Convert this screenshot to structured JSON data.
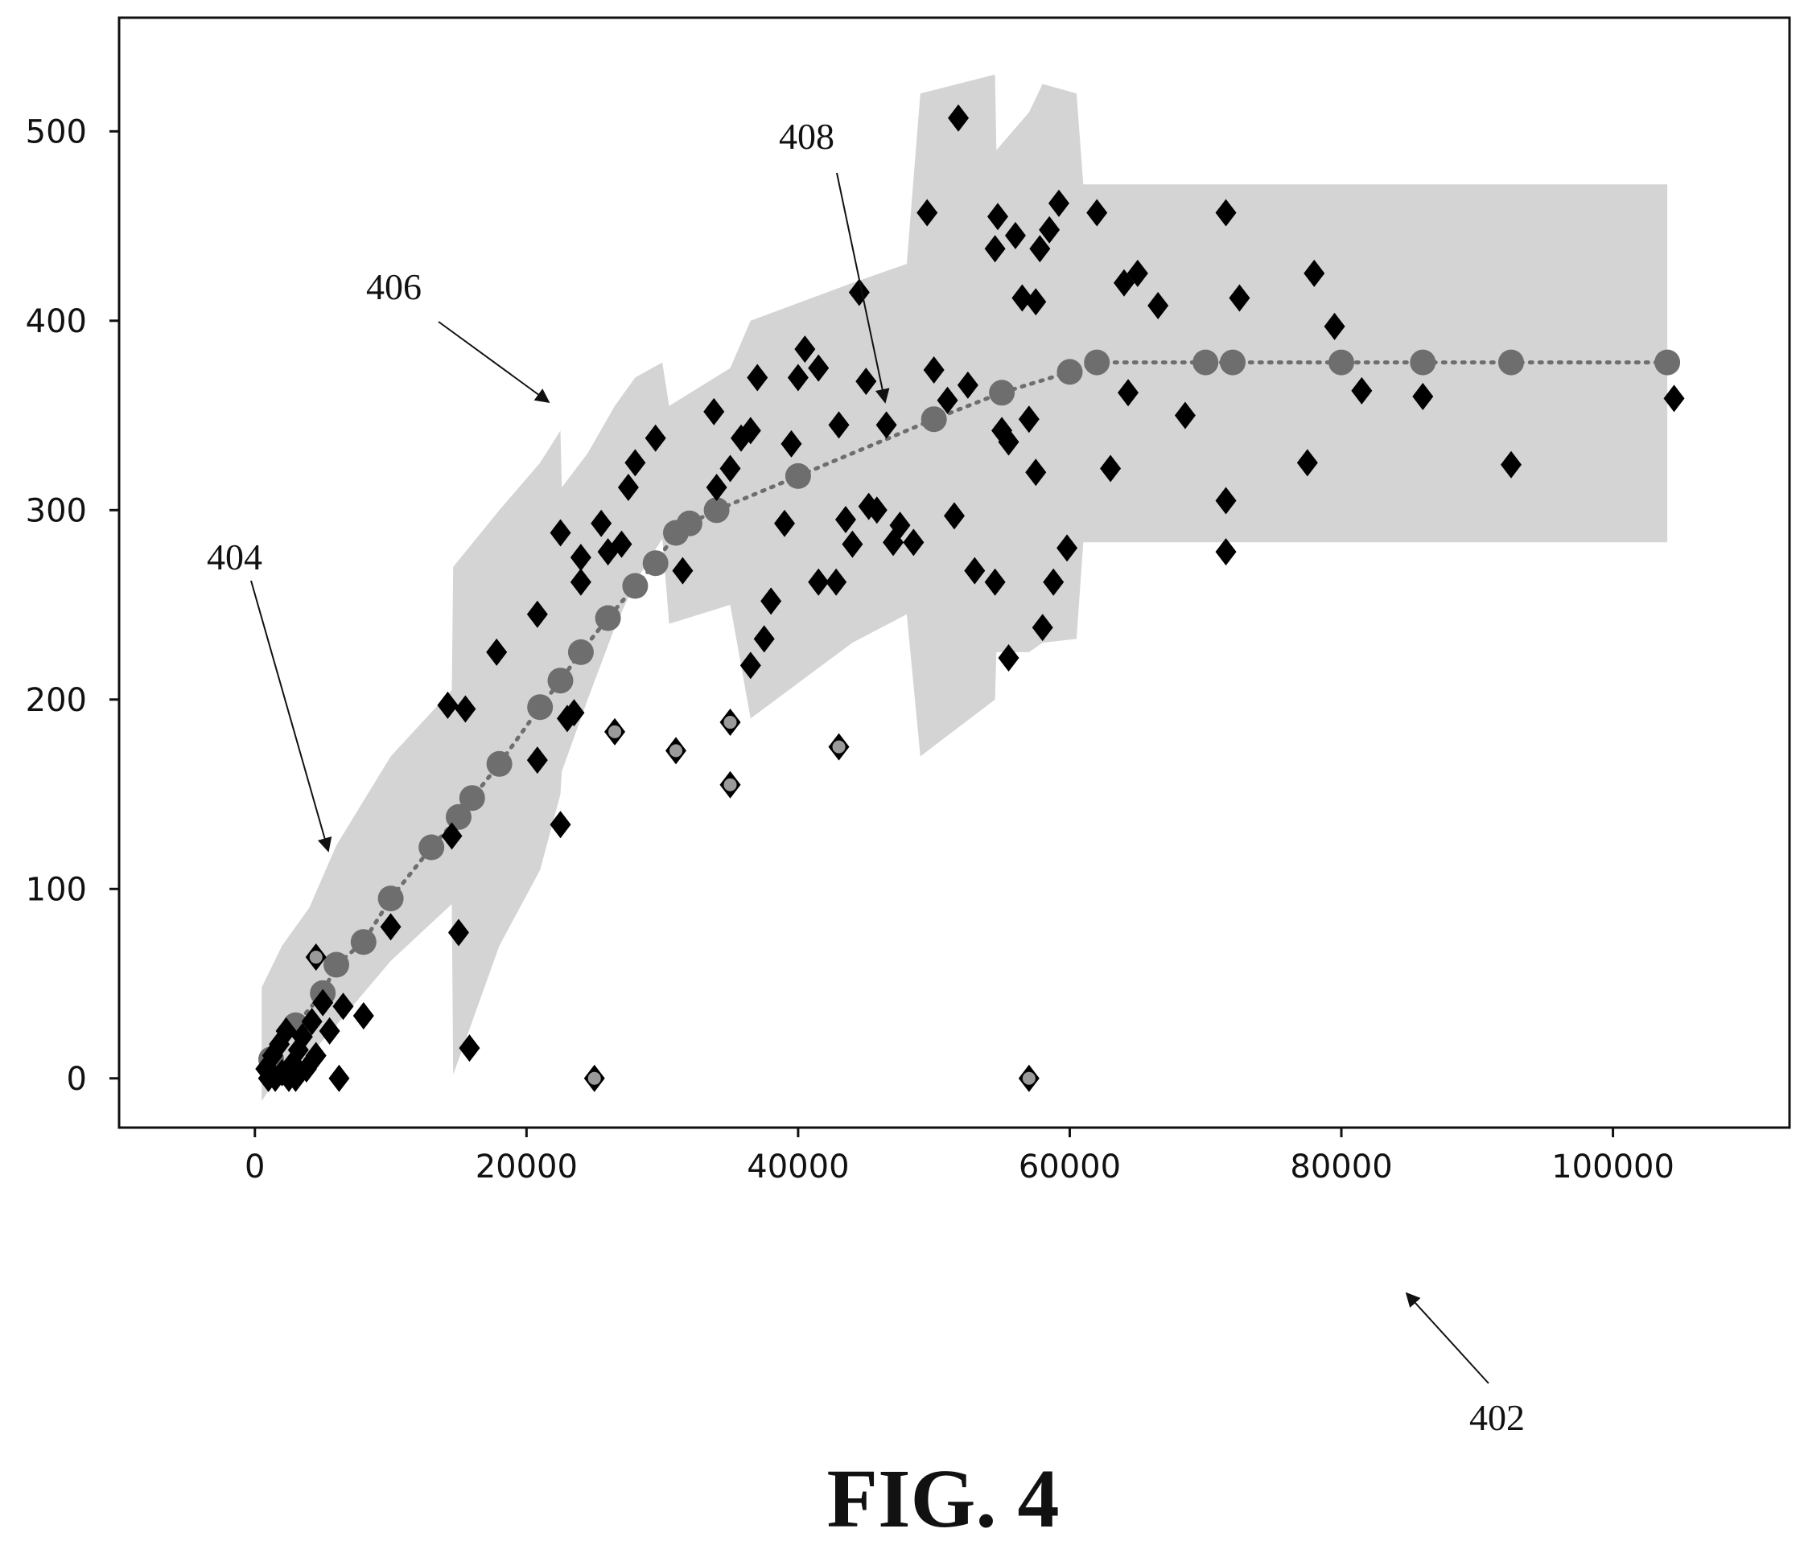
{
  "chart_data": {
    "type": "scatter",
    "title": "",
    "xlabel": "",
    "ylabel": "",
    "xlim": [
      -10000,
      113000
    ],
    "ylim": [
      -26,
      560
    ],
    "x_ticks": [
      "0",
      "20000",
      "40000",
      "60000",
      "80000",
      "100000"
    ],
    "y_ticks": [
      "0",
      "100",
      "200",
      "300",
      "400",
      "500"
    ],
    "x_tick_values": [
      0,
      20000,
      40000,
      60000,
      80000,
      100000
    ],
    "y_tick_values": [
      0,
      100,
      200,
      300,
      400,
      500
    ],
    "grid": false,
    "legend": "none",
    "colors": {
      "observed": "#000000",
      "outlier_fill": "#9a9a9a",
      "fit": "#6e6e6e",
      "band": "#d4d4d4"
    },
    "series": [
      {
        "kind": "band",
        "points": [
          [
            500,
            48,
            -12
          ],
          [
            2000,
            70,
            4
          ],
          [
            4000,
            90,
            12
          ],
          [
            6000,
            123,
            28
          ],
          [
            10000,
            170,
            62
          ],
          [
            14500,
            205,
            92
          ],
          [
            14600,
            270,
            2
          ],
          [
            18000,
            300,
            70
          ],
          [
            21000,
            325,
            110
          ],
          [
            22500,
            342,
            150
          ],
          [
            22600,
            312,
            162
          ],
          [
            24500,
            330,
            200
          ],
          [
            26500,
            355,
            238
          ],
          [
            28000,
            370,
            262
          ],
          [
            30000,
            378,
            285
          ],
          [
            30500,
            355,
            240
          ],
          [
            35000,
            375,
            250
          ],
          [
            36500,
            400,
            190
          ],
          [
            44000,
            420,
            230
          ],
          [
            48000,
            430,
            245
          ],
          [
            49000,
            520,
            170
          ],
          [
            54500,
            530,
            200
          ],
          [
            54600,
            490,
            225
          ],
          [
            57000,
            510,
            225
          ],
          [
            58000,
            525,
            230
          ],
          [
            60500,
            520,
            232
          ],
          [
            61000,
            472,
            283
          ],
          [
            104000,
            472,
            283
          ]
        ]
      },
      {
        "kind": "fit",
        "points": [
          [
            1200,
            10
          ],
          [
            3000,
            28
          ],
          [
            5000,
            45
          ],
          [
            6000,
            60
          ],
          [
            8000,
            72
          ],
          [
            10000,
            95
          ],
          [
            13000,
            122
          ],
          [
            15000,
            138
          ],
          [
            16000,
            148
          ],
          [
            18000,
            166
          ],
          [
            21000,
            196
          ],
          [
            22500,
            210
          ],
          [
            24000,
            225
          ],
          [
            26000,
            243
          ],
          [
            28000,
            260
          ],
          [
            29500,
            272
          ],
          [
            31000,
            288
          ],
          [
            32000,
            293
          ],
          [
            34000,
            300
          ],
          [
            40000,
            318
          ],
          [
            50000,
            348
          ],
          [
            55000,
            362
          ],
          [
            60000,
            373
          ],
          [
            62000,
            378
          ],
          [
            70000,
            378
          ],
          [
            72000,
            378
          ],
          [
            80000,
            378
          ],
          [
            86000,
            378
          ],
          [
            92500,
            378
          ],
          [
            104000,
            378
          ]
        ]
      },
      {
        "kind": "observed",
        "points": [
          [
            800,
            5
          ],
          [
            1000,
            0
          ],
          [
            1300,
            12
          ],
          [
            1500,
            0
          ],
          [
            1800,
            18
          ],
          [
            2000,
            3
          ],
          [
            2300,
            25
          ],
          [
            2500,
            0
          ],
          [
            2800,
            8
          ],
          [
            3000,
            0
          ],
          [
            3200,
            15
          ],
          [
            3500,
            22
          ],
          [
            3800,
            5
          ],
          [
            4200,
            30
          ],
          [
            4500,
            12
          ],
          [
            5000,
            40
          ],
          [
            5500,
            25
          ],
          [
            6200,
            0
          ],
          [
            6500,
            38
          ],
          [
            8000,
            33
          ],
          [
            10000,
            80
          ],
          [
            14200,
            197
          ],
          [
            14500,
            128
          ],
          [
            15000,
            77
          ],
          [
            15500,
            195
          ],
          [
            15800,
            16
          ],
          [
            17800,
            225
          ],
          [
            20800,
            245
          ],
          [
            20800,
            168
          ],
          [
            22500,
            288
          ],
          [
            22500,
            134
          ],
          [
            23000,
            190
          ],
          [
            23500,
            193
          ],
          [
            24000,
            275
          ],
          [
            24000,
            262
          ],
          [
            25500,
            293
          ],
          [
            26000,
            278
          ],
          [
            27000,
            282
          ],
          [
            27500,
            312
          ],
          [
            28000,
            325
          ],
          [
            29500,
            338
          ],
          [
            31500,
            268
          ],
          [
            33800,
            352
          ],
          [
            34000,
            312
          ],
          [
            35000,
            322
          ],
          [
            35800,
            338
          ],
          [
            36500,
            218
          ],
          [
            36500,
            342
          ],
          [
            37000,
            370
          ],
          [
            37500,
            232
          ],
          [
            38000,
            252
          ],
          [
            39000,
            293
          ],
          [
            39500,
            335
          ],
          [
            40000,
            370
          ],
          [
            40500,
            385
          ],
          [
            41500,
            375
          ],
          [
            41500,
            262
          ],
          [
            42800,
            262
          ],
          [
            43000,
            345
          ],
          [
            43500,
            295
          ],
          [
            44000,
            282
          ],
          [
            44500,
            415
          ],
          [
            45000,
            368
          ],
          [
            45200,
            302
          ],
          [
            45800,
            300
          ],
          [
            46500,
            345
          ],
          [
            47000,
            283
          ],
          [
            47500,
            292
          ],
          [
            48500,
            283
          ],
          [
            49500,
            457
          ],
          [
            50000,
            374
          ],
          [
            51000,
            358
          ],
          [
            51500,
            297
          ],
          [
            51800,
            507
          ],
          [
            52500,
            366
          ],
          [
            53000,
            268
          ],
          [
            54500,
            262
          ],
          [
            54500,
            438
          ],
          [
            54700,
            455
          ],
          [
            55000,
            342
          ],
          [
            55500,
            336
          ],
          [
            55500,
            222
          ],
          [
            56000,
            445
          ],
          [
            56500,
            412
          ],
          [
            57000,
            348
          ],
          [
            57500,
            320
          ],
          [
            57500,
            410
          ],
          [
            57800,
            438
          ],
          [
            58000,
            238
          ],
          [
            58500,
            448
          ],
          [
            58800,
            262
          ],
          [
            59200,
            462
          ],
          [
            59800,
            280
          ],
          [
            62000,
            457
          ],
          [
            63000,
            322
          ],
          [
            64000,
            420
          ],
          [
            64300,
            362
          ],
          [
            65000,
            425
          ],
          [
            66500,
            408
          ],
          [
            68500,
            350
          ],
          [
            71500,
            457
          ],
          [
            71500,
            305
          ],
          [
            71500,
            278
          ],
          [
            72500,
            412
          ],
          [
            77500,
            325
          ],
          [
            78000,
            425
          ],
          [
            79500,
            397
          ],
          [
            81500,
            363
          ],
          [
            86000,
            360
          ],
          [
            92500,
            324
          ],
          [
            104500,
            359
          ]
        ]
      },
      {
        "kind": "outlier",
        "points": [
          [
            4500,
            64
          ],
          [
            25000,
            0
          ],
          [
            26500,
            183
          ],
          [
            31000,
            173
          ],
          [
            35000,
            188
          ],
          [
            35000,
            155
          ],
          [
            43000,
            175
          ],
          [
            57000,
            0
          ]
        ]
      }
    ],
    "annotations": [
      {
        "text": "404"
      },
      {
        "text": "406"
      },
      {
        "text": "408"
      },
      {
        "text": "402"
      }
    ],
    "caption": "FIG. 4"
  }
}
